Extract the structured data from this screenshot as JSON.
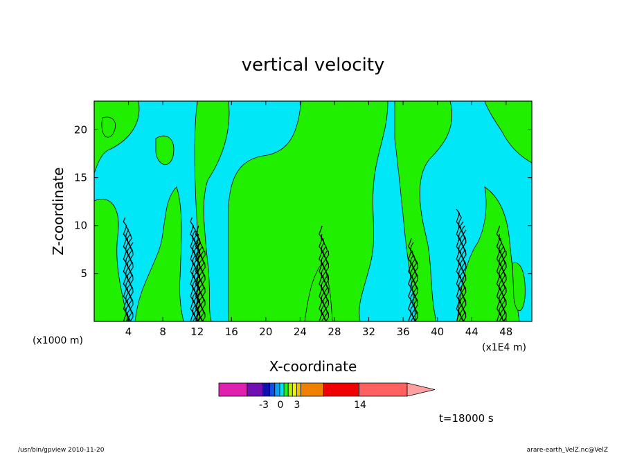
{
  "chart_data": {
    "type": "heatmap",
    "title": "vertical velocity",
    "xlabel": "X-coordinate",
    "ylabel": "Z-coordinate",
    "x_unit_left": "(x1000 m)",
    "x_unit_right": "(x1E4 m)",
    "xlim": [
      0,
      51
    ],
    "ylim": [
      0,
      23
    ],
    "x_ticks": [
      "4",
      "8",
      "12",
      "16",
      "20",
      "24",
      "28",
      "32",
      "36",
      "40",
      "44",
      "48"
    ],
    "x_tick_values": [
      4,
      8,
      12,
      16,
      20,
      24,
      28,
      32,
      36,
      40,
      44,
      48
    ],
    "y_ticks": [
      "5",
      "10",
      "15",
      "20"
    ],
    "y_tick_values": [
      5,
      10,
      15,
      20
    ],
    "grid": false,
    "colorbar": {
      "orientation": "horizontal",
      "placement": "bottom",
      "colors": [
        "#e020b0",
        "#7010b0",
        "#1010b0",
        "#1050e0",
        "#10a0f0",
        "#00e0f0",
        "#20f020",
        "#b0f000",
        "#f0f000",
        "#f0c000",
        "#f08000",
        "#f04000",
        "#f00000",
        "#ff6060",
        "#ffa0a0"
      ],
      "tick_labels": [
        "-3",
        "0",
        "3",
        "14"
      ],
      "tick_values": [
        -3,
        0,
        3,
        14
      ]
    },
    "dominant_colors": {
      "negative": "#00e8f8",
      "positive": "#20f000"
    },
    "time_label": "t=18000 s"
  },
  "footer": {
    "left": "/usr/bin/gpview   2010-11-20",
    "right": "arare-earth_VelZ.nc@VelZ"
  }
}
